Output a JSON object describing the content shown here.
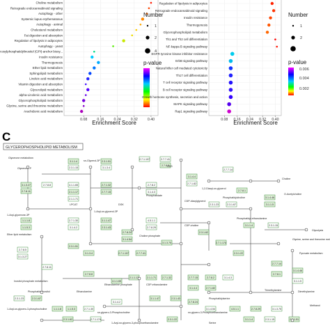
{
  "chart_data": [
    {
      "type": "scatter",
      "terms": [
        "Choline metabolism",
        "Retrograde endocannabinoid signaling",
        "Autophagy - other",
        "Systemic lupus erythematosus",
        "Autophagy - animal",
        "Cholesterol metabolism",
        "Fat digestion and absorption",
        "Regulation of lipolysis in adipocytes",
        "Autophagy - yeast",
        "Glycosylphosphatidylinositol (GPI)-anchor biosy...",
        "Insulin resistance",
        "Thermogenesis",
        "Ether lipid metabolism",
        "Sphingolipid metabolism",
        "Linoleic acid metabolism",
        "Vitamin digestion and absorption",
        "Glycerolipid metabolism",
        "alpha-Linolenic acid metabolism",
        "Glycerophospholipid metabolism",
        "Glycine, serine and threonine metabolism",
        "Arachidonic acid metabolism"
      ],
      "values": [
        0.4,
        0.39,
        0.38,
        0.36,
        0.35,
        0.33,
        0.31,
        0.27,
        0.22,
        0.13,
        0.12,
        0.15,
        0.13,
        0.11,
        0.1,
        0.09,
        0.1,
        0.09,
        0.08,
        0.08,
        0.07
      ],
      "counts": [
        1,
        1,
        1,
        2,
        1,
        1,
        1,
        2,
        1,
        1,
        2,
        2,
        2,
        2,
        2,
        1,
        2,
        1,
        2,
        1,
        2
      ],
      "xlabel": "Enrichment Score",
      "xticks": [
        "0.08",
        "0.16",
        "0.24",
        "0.32",
        "0.40"
      ],
      "xlim": [
        0.0,
        0.42
      ]
    },
    {
      "type": "scatter",
      "terms": [
        "Regulation of lipolysis in adipocytes",
        "Retrograde endocannabinoid signaling",
        "Insulin resistance",
        "Thermogenesis",
        "Glycerophospholipid metabolism",
        "Th1 and Th2 cell differentiation",
        "NF-kappa B signaling pathway",
        "EGFR tyrosine kinase inhibitor resistance",
        "ErbB signaling pathway",
        "Natural killer cell mediated cytotoxicity",
        "Th17 cell differentiation",
        "T cell receptor signaling pathway",
        "B cell receptor signaling pathway",
        "Growth hormone synthesis, secretion and action",
        "MAPK signaling pathway",
        "Rap1 signaling pathway"
      ],
      "values": [
        0.38,
        0.39,
        0.37,
        0.36,
        0.35,
        0.4,
        0.41,
        0.13,
        0.12,
        0.12,
        0.12,
        0.12,
        0.12,
        0.12,
        0.11,
        0.11
      ],
      "counts": [
        2,
        2,
        2,
        2,
        2,
        1,
        1,
        3,
        3,
        3,
        3,
        3,
        3,
        3,
        3,
        3
      ],
      "xlabel": "Enrichment Score",
      "xticks": [
        "0.08",
        "0.16",
        "0.24",
        "0.32",
        "0.40"
      ],
      "xlim": [
        0.0,
        0.42
      ]
    }
  ],
  "legend": {
    "size_title": "Number",
    "size_values": [
      "1",
      "2",
      "4"
    ],
    "color_title": "p-value",
    "color_ticks_left": [],
    "color_ticks_right": [
      "0.006",
      "0.004",
      "0.002"
    ]
  },
  "panel_c": {
    "letter": "C",
    "title": "GLYCEROPHOSPHOLIPID METABOLISM"
  },
  "pathway_labels": {
    "glycerol_metabolism": "Glycerone metabolism",
    "glycerone_p": "Glycerone-P",
    "sn_glycerol_3p": "sn-Glycerol-3P",
    "acyl_glycerone_p": "1-Acyl-glycerone-3P",
    "lysophosphatidate": "1-Acyl-sn-glycerol-3P",
    "phosphatidate": "Phosphatidate",
    "diacylglycerol": "1,2-Diacyl-sn-glycerol",
    "cdp_diacylglycerol": "CDP-diacylglycerol",
    "phosphatidylcholine": "Phosphatidylcholine",
    "phosphatidylethanolamine": "Phosphatidyl-ethanolamine",
    "phosphatidylserine": "Phosphatidylserine",
    "choline": "Choline",
    "ethanolamine": "Ethanolamine",
    "ether_lipid": "Ether lipid metabolism",
    "glycine_serine": "Glycine, serine and threonine metabolism",
    "inositol": "Inositol phosphate metabolism",
    "pyruvate": "Pyruvate metabolism",
    "glycolysis": "Glycolysis",
    "acetylcholine": "O-Acetylcholine",
    "ptdins": "Phosphatidylinositol",
    "lpcat": "LPCAT",
    "pebp": "Pebp1",
    "etnk": "ETNK",
    "ept1": "EPT1",
    "dgk": "DGK",
    "cds": "CDS",
    "pss": "PSS",
    "psd": "PSD",
    "pemt": "PEMT",
    "chk": "CHK",
    "pcyt": "PCYT",
    "gpat": "GPAT",
    "agpat": "AGPAT",
    "pap": "PAP",
    "diacylglycerol_short": "1,2-Diacyl-sn-glycerol",
    "choline_p": "Choline phosphate",
    "cdp_choline": "CDP-choline",
    "ethanolamine_p": "Ethanolamine phosphate",
    "cdp_ethanolamine": "CDP-ethanolamine",
    "serine": "Serine",
    "lysophosphatidylcholine": "1-Acyl-sn-glycero-3-phosphocholine",
    "lysope": "1-Acyl-sn-glycero-3-phosphoethanolamine",
    "glycerophosphocholine": "sn-glycero-3-Phosphocholine",
    "glycerophosphoethanolamine": "sn-glycero-3-Phosphoethanolamine",
    "trimethyl": "Trimethylamine",
    "dimethyl": "Dimethylamine",
    "methanol": "Methanol"
  },
  "enzymes": [
    "3.1.1.4",
    "2.3.1.15",
    "2.3.1.51",
    "3.1.3.4",
    "2.7.1.107",
    "2.7.7.41",
    "2.7.8.5",
    "3.1.3.27",
    "2.7.8.11",
    "2.7.8.8",
    "4.1.1.65",
    "2.1.1.17",
    "2.1.1.71",
    "2.7.1.32",
    "2.7.7.15",
    "2.7.8.2",
    "3.1.4.3",
    "3.1.4.4",
    "2.7.1.82",
    "2.7.7.14",
    "2.7.8.1",
    "3.1.4.46",
    "3.1.1.5",
    "2.3.1.23",
    "2.3.1.67",
    "1.1.1.8",
    "1.1.5.3",
    "2.7.1.30",
    "3.1.4.2",
    "3.1.1.47",
    "2.3.1.43",
    "2.7.8.24",
    "3.1.4.54",
    "4.5.1.1",
    "2.7.8.29",
    "3.1.3.75",
    "2.3.1.62",
    "2.7.1.174",
    "2.3.1.22"
  ]
}
